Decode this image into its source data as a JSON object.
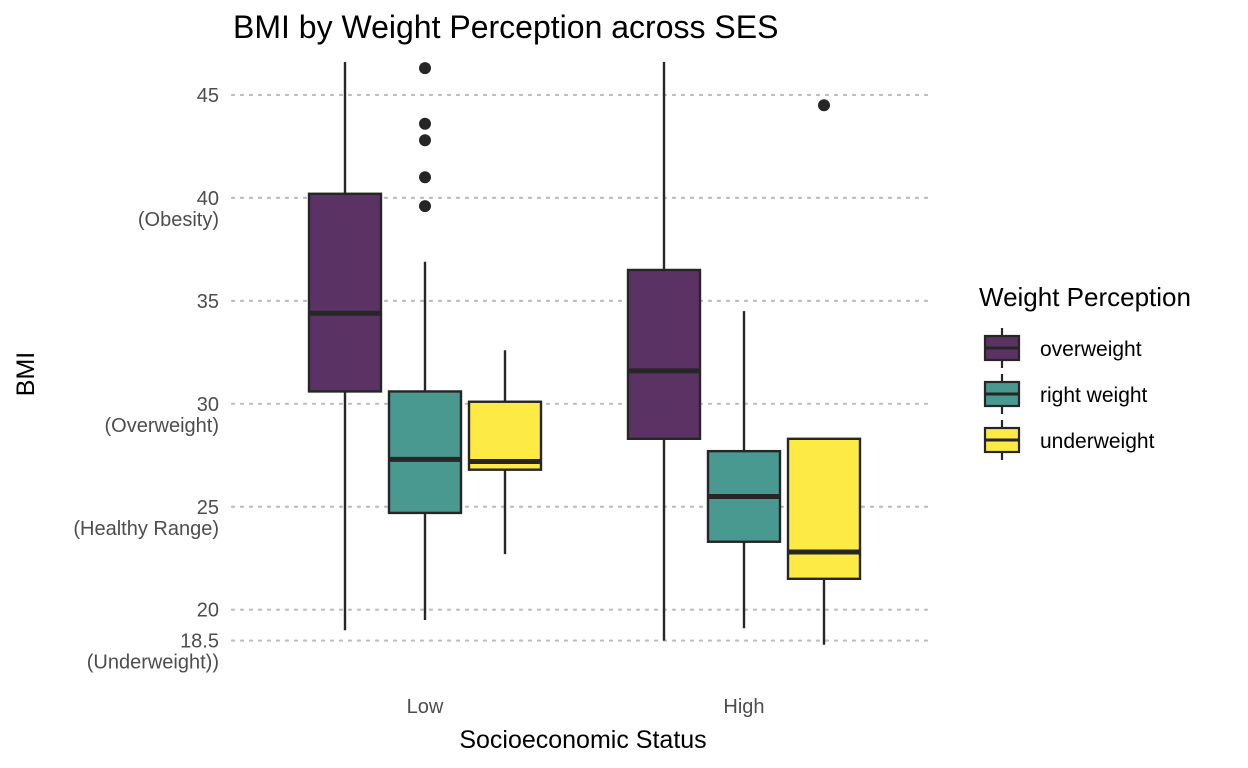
{
  "chart_data": {
    "type": "box",
    "title": "BMI by Weight Perception across SES",
    "xlabel": "Socioeconomic Status",
    "ylabel": "BMI",
    "ylim": [
      17.8,
      46.6
    ],
    "grid": "dotted horizontal at y ticks",
    "y_ticks": [
      {
        "value": 45,
        "label": "45",
        "sublabel": ""
      },
      {
        "value": 40,
        "label": "40",
        "sublabel": "(Obesity)"
      },
      {
        "value": 35,
        "label": "35",
        "sublabel": ""
      },
      {
        "value": 30,
        "label": "30",
        "sublabel": "(Overweight)"
      },
      {
        "value": 25,
        "label": "25",
        "sublabel": "(Healthy Range)"
      },
      {
        "value": 20,
        "label": "20",
        "sublabel": ""
      },
      {
        "value": 18.5,
        "label": "18.5",
        "sublabel": "(Underweight))"
      }
    ],
    "categories": [
      "Low",
      "High"
    ],
    "legend": {
      "title": "Weight Perception",
      "position": "right",
      "entries": [
        {
          "label": "overweight",
          "color": "#5b3264"
        },
        {
          "label": "right weight",
          "color": "#4a9990"
        },
        {
          "label": "underweight",
          "color": "#fdea45"
        }
      ]
    },
    "series": [
      {
        "name": "overweight",
        "color": "#5b3264",
        "boxes": [
          {
            "category": "Low",
            "min": 19.0,
            "q1": 30.6,
            "median": 34.4,
            "q3": 40.2,
            "max": 46.6,
            "outliers": []
          },
          {
            "category": "High",
            "min": 18.5,
            "q1": 28.3,
            "median": 31.6,
            "q3": 36.5,
            "max": 46.6,
            "outliers": []
          }
        ]
      },
      {
        "name": "right weight",
        "color": "#4a9990",
        "boxes": [
          {
            "category": "Low",
            "min": 19.5,
            "q1": 24.7,
            "median": 27.3,
            "q3": 30.6,
            "max": 36.9,
            "outliers": [
              39.6,
              41.0,
              42.8,
              43.6,
              46.3
            ]
          },
          {
            "category": "High",
            "min": 19.1,
            "q1": 23.3,
            "median": 25.5,
            "q3": 27.7,
            "max": 34.5,
            "outliers": []
          }
        ]
      },
      {
        "name": "underweight",
        "color": "#fdea45",
        "boxes": [
          {
            "category": "Low",
            "min": 22.7,
            "q1": 26.8,
            "median": 27.2,
            "q3": 30.1,
            "max": 32.6,
            "outliers": []
          },
          {
            "category": "High",
            "min": 18.3,
            "q1": 21.5,
            "median": 22.8,
            "q3": 28.3,
            "max": 28.3,
            "outliers": [
              44.5
            ]
          }
        ]
      }
    ]
  }
}
